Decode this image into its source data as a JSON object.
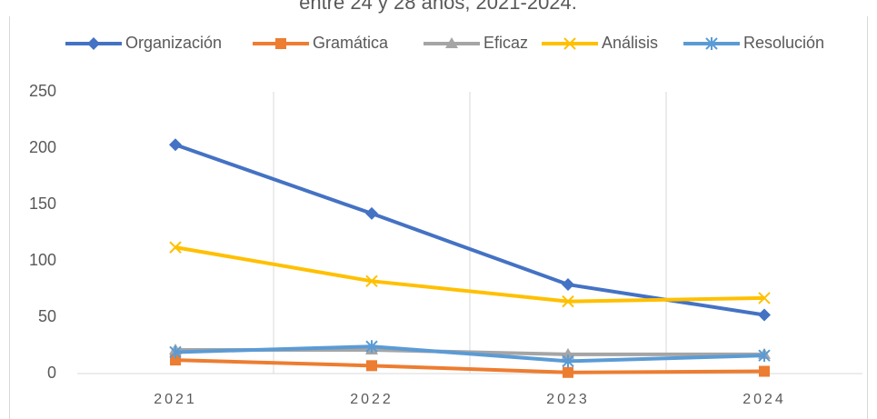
{
  "chart_data": {
    "type": "line",
    "title": "entre 24 y 28 años, 2021-2024.",
    "categories": [
      "2021",
      "2022",
      "2023",
      "2024"
    ],
    "series": [
      {
        "name": "Organización",
        "color": "#4472c4",
        "marker": "diamond",
        "values": [
          203,
          142,
          79,
          52
        ]
      },
      {
        "name": "Gramática",
        "color": "#ed7d31",
        "marker": "square",
        "values": [
          12,
          7,
          1,
          2
        ]
      },
      {
        "name": "Eficaz",
        "color": "#a5a5a5",
        "marker": "triangle",
        "values": [
          21,
          21,
          17,
          17
        ]
      },
      {
        "name": "Análisis",
        "color": "#ffc000",
        "marker": "x",
        "values": [
          112,
          82,
          64,
          67
        ]
      },
      {
        "name": "Resolución",
        "color": "#5b9bd5",
        "marker": "star",
        "values": [
          19,
          24,
          11,
          16
        ]
      }
    ],
    "ylim": [
      0,
      250
    ],
    "yticks": [
      0,
      50,
      100,
      150,
      200,
      250
    ],
    "legend": "top"
  }
}
